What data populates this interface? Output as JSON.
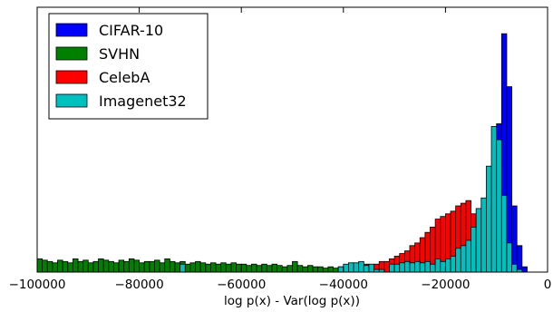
{
  "chart_data": {
    "type": "histogram",
    "xlabel": "log p(x) - Var(log p(x))",
    "ylabel": "",
    "title": "",
    "xlim": [
      -100000,
      0
    ],
    "x_ticks": [
      -100000,
      -80000,
      -60000,
      -40000,
      -20000,
      0
    ],
    "x_tick_labels": [
      "−100000",
      "−80000",
      "−60000",
      "−40000",
      "−20000",
      "0"
    ],
    "y_ticks_visible": false,
    "ylim": [
      0,
      1
    ],
    "bin_width": 1000,
    "legend_position": "top-left",
    "series": [
      {
        "name": "CIFAR-10",
        "color": "#0000ff",
        "bins": [
          [
            -16000,
            0.01
          ],
          [
            -15000,
            0.02
          ],
          [
            -14000,
            0.05
          ],
          [
            -13000,
            0.1
          ],
          [
            -12000,
            0.18
          ],
          [
            -11000,
            0.34
          ],
          [
            -10000,
            0.56
          ],
          [
            -9000,
            0.9
          ],
          [
            -8000,
            0.7
          ],
          [
            -7000,
            0.25
          ],
          [
            -6000,
            0.1
          ],
          [
            -5000,
            0.02
          ]
        ]
      },
      {
        "name": "SVHN",
        "color": "#008000",
        "bins": [
          [
            -100000,
            0.05
          ],
          [
            -99000,
            0.045
          ],
          [
            -98000,
            0.04
          ],
          [
            -97000,
            0.035
          ],
          [
            -96000,
            0.045
          ],
          [
            -95000,
            0.04
          ],
          [
            -94000,
            0.035
          ],
          [
            -93000,
            0.05
          ],
          [
            -92000,
            0.04
          ],
          [
            -91000,
            0.045
          ],
          [
            -90000,
            0.035
          ],
          [
            -89000,
            0.04
          ],
          [
            -88000,
            0.05
          ],
          [
            -87000,
            0.045
          ],
          [
            -86000,
            0.04
          ],
          [
            -85000,
            0.035
          ],
          [
            -84000,
            0.045
          ],
          [
            -83000,
            0.04
          ],
          [
            -82000,
            0.05
          ],
          [
            -81000,
            0.045
          ],
          [
            -80000,
            0.035
          ],
          [
            -79000,
            0.04
          ],
          [
            -78000,
            0.04
          ],
          [
            -77000,
            0.045
          ],
          [
            -76000,
            0.035
          ],
          [
            -75000,
            0.05
          ],
          [
            -74000,
            0.04
          ],
          [
            -73000,
            0.035
          ],
          [
            -72000,
            0.04
          ],
          [
            -71000,
            0.03
          ],
          [
            -70000,
            0.035
          ],
          [
            -69000,
            0.04
          ],
          [
            -68000,
            0.035
          ],
          [
            -67000,
            0.03
          ],
          [
            -66000,
            0.035
          ],
          [
            -65000,
            0.03
          ],
          [
            -64000,
            0.035
          ],
          [
            -63000,
            0.03
          ],
          [
            -62000,
            0.035
          ],
          [
            -61000,
            0.03
          ],
          [
            -60000,
            0.03
          ],
          [
            -59000,
            0.025
          ],
          [
            -58000,
            0.03
          ],
          [
            -57000,
            0.025
          ],
          [
            -56000,
            0.03
          ],
          [
            -55000,
            0.025
          ],
          [
            -54000,
            0.03
          ],
          [
            -53000,
            0.025
          ],
          [
            -52000,
            0.02
          ],
          [
            -51000,
            0.025
          ],
          [
            -50000,
            0.04
          ],
          [
            -49000,
            0.025
          ],
          [
            -48000,
            0.02
          ],
          [
            -47000,
            0.025
          ],
          [
            -46000,
            0.02
          ],
          [
            -45000,
            0.02
          ],
          [
            -44000,
            0.015
          ],
          [
            -43000,
            0.02
          ],
          [
            -42000,
            0.015
          ],
          [
            -41000,
            0.02
          ],
          [
            -40000,
            0.015
          ],
          [
            -39000,
            0.02
          ],
          [
            -38000,
            0.015
          ],
          [
            -37000,
            0.015
          ],
          [
            -36000,
            0.01
          ],
          [
            -35000,
            0.015
          ],
          [
            -34000,
            0.01
          ],
          [
            -33000,
            0.01
          ],
          [
            -32000,
            0.01
          ],
          [
            -31000,
            0.01
          ],
          [
            -30000,
            0.01
          ],
          [
            -29000,
            0.005
          ],
          [
            -28000,
            0.01
          ],
          [
            -27000,
            0.005
          ],
          [
            -26000,
            0.005
          ],
          [
            -25000,
            0.005
          ],
          [
            -24000,
            0.005
          ],
          [
            -23000,
            0.005
          ],
          [
            -22000,
            0.005
          ],
          [
            -21000,
            0.005
          ],
          [
            -20000,
            0.005
          ],
          [
            -19000,
            0.003
          ],
          [
            -18000,
            0.003
          ],
          [
            -17000,
            0.003
          ],
          [
            -16000,
            0.003
          ],
          [
            -15000,
            0.002
          ],
          [
            -14000,
            0.002
          ],
          [
            -13000,
            0.002
          ],
          [
            -12000,
            0.002
          ],
          [
            -11000,
            0.002
          ],
          [
            -10000,
            0.001
          ],
          [
            -9000,
            0.001
          ]
        ]
      },
      {
        "name": "CelebA",
        "color": "#ff0000",
        "bins": [
          [
            -38000,
            0.02
          ],
          [
            -37000,
            0.02
          ],
          [
            -36000,
            0.03
          ],
          [
            -35000,
            0.02
          ],
          [
            -34000,
            0.03
          ],
          [
            -33000,
            0.04
          ],
          [
            -32000,
            0.04
          ],
          [
            -31000,
            0.05
          ],
          [
            -30000,
            0.06
          ],
          [
            -29000,
            0.07
          ],
          [
            -28000,
            0.08
          ],
          [
            -27000,
            0.1
          ],
          [
            -26000,
            0.11
          ],
          [
            -25000,
            0.13
          ],
          [
            -24000,
            0.15
          ],
          [
            -23000,
            0.17
          ],
          [
            -22000,
            0.2
          ],
          [
            -21000,
            0.21
          ],
          [
            -20000,
            0.22
          ],
          [
            -19000,
            0.23
          ],
          [
            -18000,
            0.25
          ],
          [
            -17000,
            0.26
          ],
          [
            -16000,
            0.27
          ],
          [
            -15000,
            0.22
          ],
          [
            -14000,
            0.16
          ],
          [
            -13000,
            0.09
          ],
          [
            -12000,
            0.05
          ],
          [
            -11000,
            0.02
          ],
          [
            -10000,
            0.01
          ]
        ]
      },
      {
        "name": "Imagenet32",
        "color": "#00bfbf",
        "bins": [
          [
            -72000,
            0.03
          ],
          [
            -41000,
            0.02
          ],
          [
            -40000,
            0.03
          ],
          [
            -39000,
            0.035
          ],
          [
            -38000,
            0.035
          ],
          [
            -37000,
            0.04
          ],
          [
            -36000,
            0.025
          ],
          [
            -35000,
            0.03
          ],
          [
            -34000,
            0.01
          ],
          [
            -33000,
            0.01
          ],
          [
            -31000,
            0.03
          ],
          [
            -30000,
            0.03
          ],
          [
            -29000,
            0.035
          ],
          [
            -28000,
            0.04
          ],
          [
            -27000,
            0.035
          ],
          [
            -26000,
            0.04
          ],
          [
            -25000,
            0.035
          ],
          [
            -24000,
            0.04
          ],
          [
            -23000,
            0.03
          ],
          [
            -22000,
            0.05
          ],
          [
            -21000,
            0.04
          ],
          [
            -20000,
            0.05
          ],
          [
            -19000,
            0.06
          ],
          [
            -18000,
            0.09
          ],
          [
            -17000,
            0.1
          ],
          [
            -16000,
            0.12
          ],
          [
            -15000,
            0.17
          ],
          [
            -14000,
            0.24
          ],
          [
            -13000,
            0.28
          ],
          [
            -12000,
            0.4
          ],
          [
            -11000,
            0.55
          ],
          [
            -10000,
            0.5
          ],
          [
            -9000,
            0.29
          ],
          [
            -8000,
            0.11
          ],
          [
            -7000,
            0.03
          ],
          [
            -6000,
            0.01
          ]
        ]
      }
    ]
  }
}
